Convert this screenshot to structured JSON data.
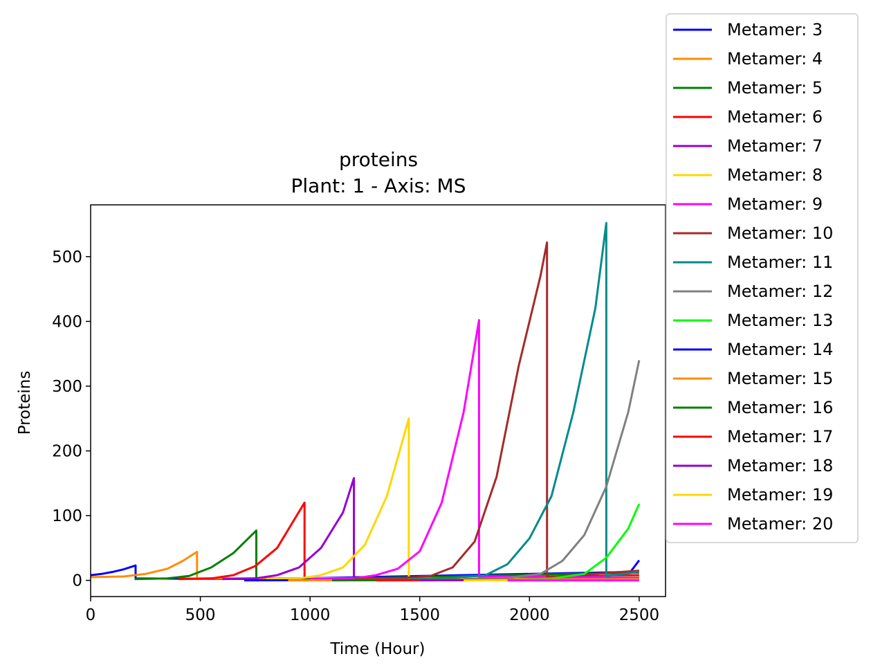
{
  "chart_data": {
    "type": "line",
    "title": "proteins",
    "subtitle": "Plant: 1 - Axis: MS",
    "xlabel": "Time (Hour)",
    "ylabel": "Proteins",
    "xlim": [
      0,
      2620
    ],
    "ylim": [
      -25,
      580
    ],
    "xticks": [
      0,
      500,
      1000,
      1500,
      2000,
      2500
    ],
    "yticks": [
      0,
      100,
      200,
      300,
      400,
      500
    ],
    "grid": false,
    "legend_position": "outside-top-right",
    "series": [
      {
        "name": "Metamer: 3",
        "color": "#0000ff",
        "points": [
          [
            0,
            8
          ],
          [
            50,
            10
          ],
          [
            100,
            13
          ],
          [
            150,
            17
          ],
          [
            205,
            23
          ],
          [
            205,
            3
          ],
          [
            800,
            2
          ],
          [
            2460,
            13
          ],
          [
            2500,
            31
          ]
        ]
      },
      {
        "name": "Metamer: 4",
        "color": "#ff8c00",
        "points": [
          [
            0,
            5
          ],
          [
            150,
            6
          ],
          [
            250,
            10
          ],
          [
            350,
            18
          ],
          [
            420,
            30
          ],
          [
            485,
            44
          ],
          [
            485,
            3
          ],
          [
            2000,
            4
          ],
          [
            2500,
            7
          ]
        ]
      },
      {
        "name": "Metamer: 5",
        "color": "#008000",
        "points": [
          [
            200,
            2
          ],
          [
            350,
            3
          ],
          [
            450,
            7
          ],
          [
            550,
            20
          ],
          [
            650,
            42
          ],
          [
            755,
            77
          ],
          [
            755,
            0
          ],
          [
            2500,
            12
          ]
        ]
      },
      {
        "name": "Metamer: 6",
        "color": "#ff0000",
        "points": [
          [
            400,
            2
          ],
          [
            550,
            3
          ],
          [
            650,
            8
          ],
          [
            750,
            22
          ],
          [
            850,
            50
          ],
          [
            975,
            120
          ],
          [
            975,
            0
          ],
          [
            2500,
            8
          ]
        ]
      },
      {
        "name": "Metamer: 7",
        "color": "#9400d3",
        "points": [
          [
            600,
            2
          ],
          [
            750,
            3
          ],
          [
            850,
            8
          ],
          [
            950,
            20
          ],
          [
            1050,
            50
          ],
          [
            1150,
            105
          ],
          [
            1200,
            158
          ],
          [
            1200,
            2
          ],
          [
            2500,
            6
          ]
        ]
      },
      {
        "name": "Metamer: 8",
        "color": "#ffd700",
        "points": [
          [
            800,
            2
          ],
          [
            950,
            3
          ],
          [
            1050,
            8
          ],
          [
            1150,
            20
          ],
          [
            1250,
            55
          ],
          [
            1350,
            130
          ],
          [
            1450,
            250
          ],
          [
            1450,
            3
          ],
          [
            2500,
            5
          ]
        ]
      },
      {
        "name": "Metamer: 9",
        "color": "#ff00ff",
        "points": [
          [
            1000,
            2
          ],
          [
            1200,
            3
          ],
          [
            1300,
            8
          ],
          [
            1400,
            18
          ],
          [
            1500,
            45
          ],
          [
            1600,
            120
          ],
          [
            1700,
            260
          ],
          [
            1770,
            402
          ],
          [
            1770,
            6
          ],
          [
            2500,
            4
          ]
        ]
      },
      {
        "name": "Metamer: 10",
        "color": "#a52a2a",
        "points": [
          [
            1200,
            2
          ],
          [
            1400,
            3
          ],
          [
            1550,
            7
          ],
          [
            1650,
            20
          ],
          [
            1750,
            60
          ],
          [
            1850,
            160
          ],
          [
            1950,
            330
          ],
          [
            2050,
            470
          ],
          [
            2080,
            522
          ],
          [
            2080,
            5
          ],
          [
            2500,
            15
          ]
        ]
      },
      {
        "name": "Metamer: 11",
        "color": "#008b8b",
        "points": [
          [
            1450,
            2
          ],
          [
            1650,
            4
          ],
          [
            1800,
            8
          ],
          [
            1900,
            25
          ],
          [
            2000,
            65
          ],
          [
            2100,
            130
          ],
          [
            2200,
            260
          ],
          [
            2300,
            420
          ],
          [
            2350,
            552
          ],
          [
            2350,
            7
          ],
          [
            2500,
            13
          ]
        ]
      },
      {
        "name": "Metamer: 12",
        "color": "#808080",
        "points": [
          [
            1700,
            2
          ],
          [
            1900,
            4
          ],
          [
            2050,
            10
          ],
          [
            2150,
            30
          ],
          [
            2250,
            70
          ],
          [
            2350,
            145
          ],
          [
            2450,
            260
          ],
          [
            2500,
            340
          ]
        ]
      },
      {
        "name": "Metamer: 13",
        "color": "#00ff00",
        "points": [
          [
            1900,
            1
          ],
          [
            2100,
            3
          ],
          [
            2250,
            10
          ],
          [
            2350,
            35
          ],
          [
            2450,
            80
          ],
          [
            2500,
            118
          ]
        ]
      },
      {
        "name": "Metamer: 14",
        "color": "#0000ff",
        "points": [
          [
            700,
            0
          ],
          [
            2500,
            2
          ]
        ]
      },
      {
        "name": "Metamer: 15",
        "color": "#ff8c00",
        "points": [
          [
            900,
            0
          ],
          [
            2500,
            2
          ]
        ]
      },
      {
        "name": "Metamer: 16",
        "color": "#008000",
        "points": [
          [
            1100,
            0
          ],
          [
            2500,
            1
          ]
        ]
      },
      {
        "name": "Metamer: 17",
        "color": "#ff0000",
        "points": [
          [
            1300,
            0
          ],
          [
            2500,
            1
          ]
        ]
      },
      {
        "name": "Metamer: 18",
        "color": "#9400d3",
        "points": [
          [
            1500,
            0
          ],
          [
            2500,
            1
          ]
        ]
      },
      {
        "name": "Metamer: 19",
        "color": "#ffd700",
        "points": [
          [
            1700,
            0
          ],
          [
            2500,
            1
          ]
        ]
      },
      {
        "name": "Metamer: 20",
        "color": "#ff00ff",
        "points": [
          [
            1900,
            0
          ],
          [
            2500,
            0
          ]
        ]
      }
    ]
  }
}
